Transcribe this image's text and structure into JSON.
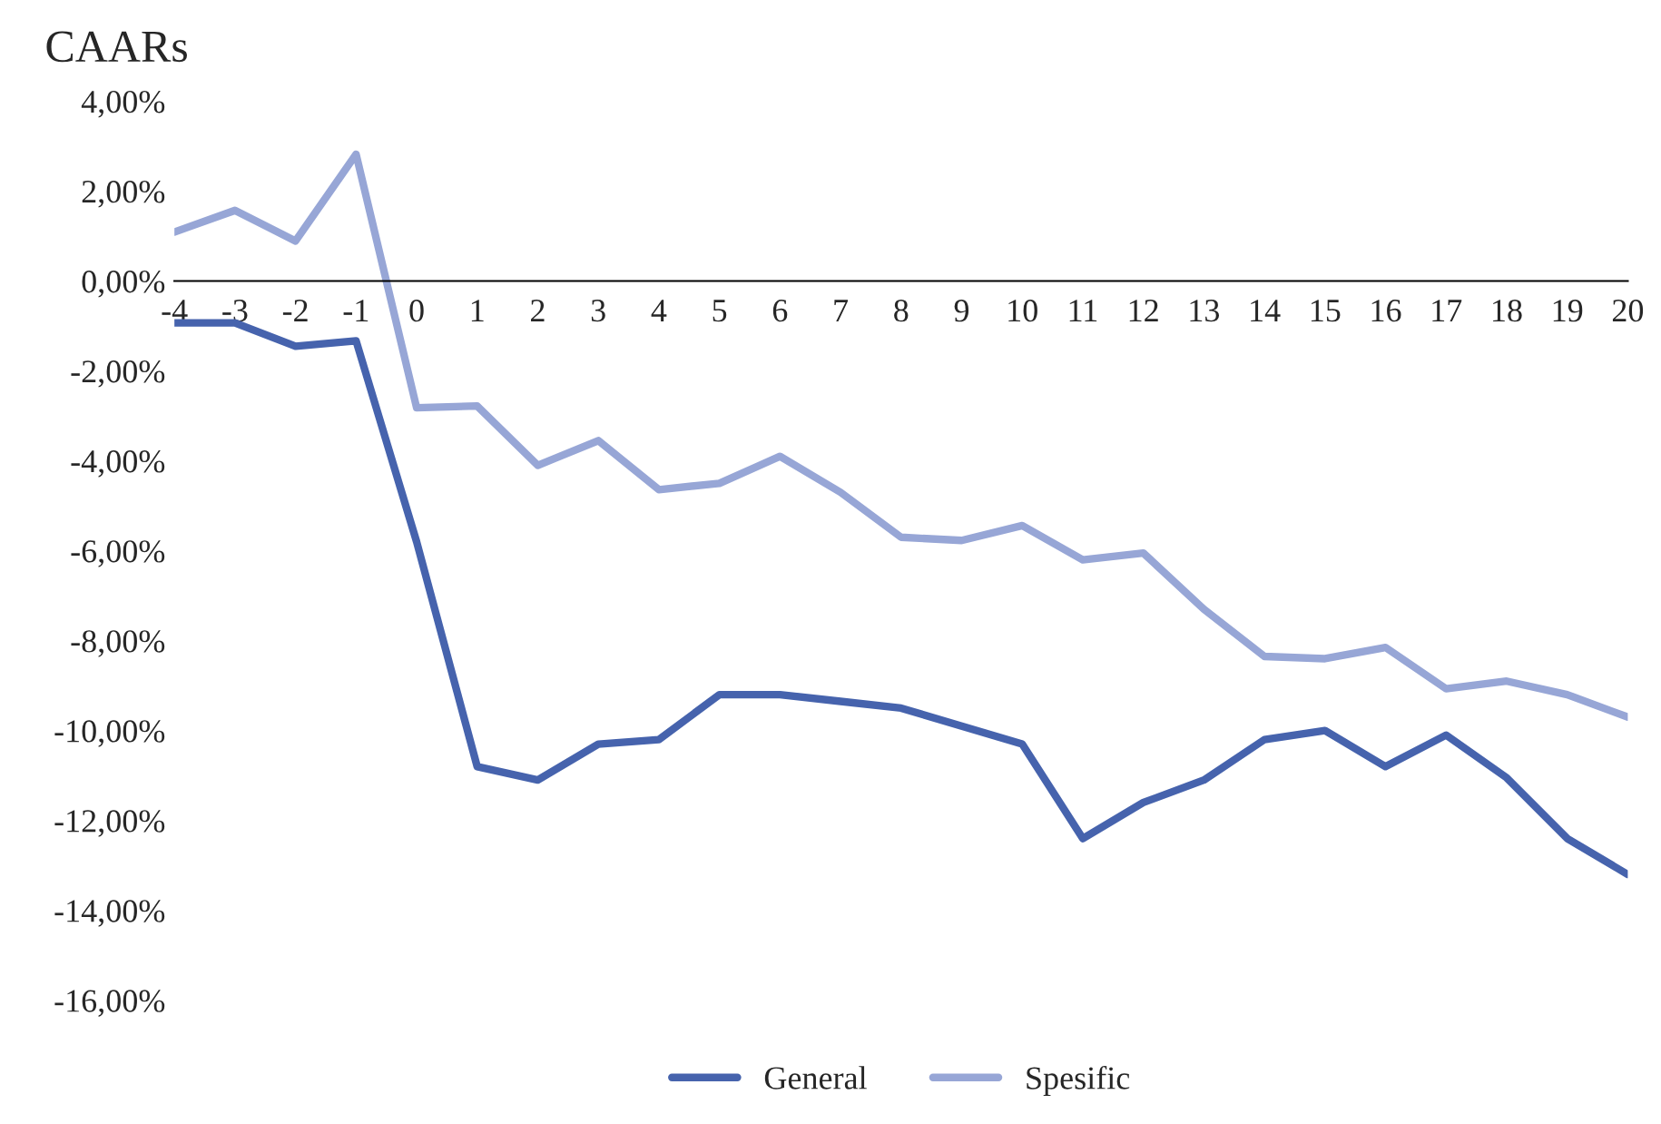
{
  "chart_data": {
    "type": "line",
    "title": "CAARs",
    "x": [
      -4,
      -3,
      -2,
      -1,
      0,
      1,
      2,
      3,
      4,
      5,
      6,
      7,
      8,
      9,
      10,
      11,
      12,
      13,
      14,
      15,
      16,
      17,
      18,
      19,
      20
    ],
    "series": [
      {
        "name": "General",
        "color": "#4663ad",
        "values": [
          -0.93,
          -0.93,
          -1.45,
          -1.33,
          -5.8,
          -10.8,
          -11.1,
          -10.3,
          -10.2,
          -9.2,
          -9.2,
          -9.35,
          -9.5,
          -9.9,
          -10.3,
          -12.4,
          -11.6,
          -11.1,
          -10.2,
          -10.0,
          -10.8,
          -10.1,
          -11.05,
          -12.4,
          -13.2
        ]
      },
      {
        "name": "Spesific",
        "color": "#97a6d6",
        "values": [
          1.09,
          1.57,
          0.89,
          2.82,
          -2.82,
          -2.78,
          -4.1,
          -3.55,
          -4.64,
          -4.5,
          -3.9,
          -4.7,
          -5.7,
          -5.77,
          -5.44,
          -6.2,
          -6.05,
          -7.3,
          -8.35,
          -8.4,
          -8.15,
          -9.07,
          -8.9,
          -9.2,
          -9.7
        ]
      }
    ],
    "xlim": [
      -4,
      20
    ],
    "xticks": [
      -4,
      -3,
      -2,
      -1,
      0,
      1,
      2,
      3,
      4,
      5,
      6,
      7,
      8,
      9,
      10,
      11,
      12,
      13,
      14,
      15,
      16,
      17,
      18,
      19,
      20
    ],
    "ylim": [
      -16,
      4
    ],
    "yticks": [
      {
        "value": 4,
        "label": "4,00%"
      },
      {
        "value": 2,
        "label": "2,00%"
      },
      {
        "value": 0,
        "label": "0,00%"
      },
      {
        "value": -2,
        "label": "-2,00%"
      },
      {
        "value": -4,
        "label": "-4,00%"
      },
      {
        "value": -6,
        "label": "-6,00%"
      },
      {
        "value": -8,
        "label": "-8,00%"
      },
      {
        "value": -10,
        "label": "-10,00%"
      },
      {
        "value": -12,
        "label": "-12,00%"
      },
      {
        "value": -14,
        "label": "-14,00%"
      },
      {
        "value": -16,
        "label": "-16,00%"
      }
    ],
    "grid": false,
    "legend": "bottom",
    "marker": "none",
    "line_style": "solid"
  }
}
